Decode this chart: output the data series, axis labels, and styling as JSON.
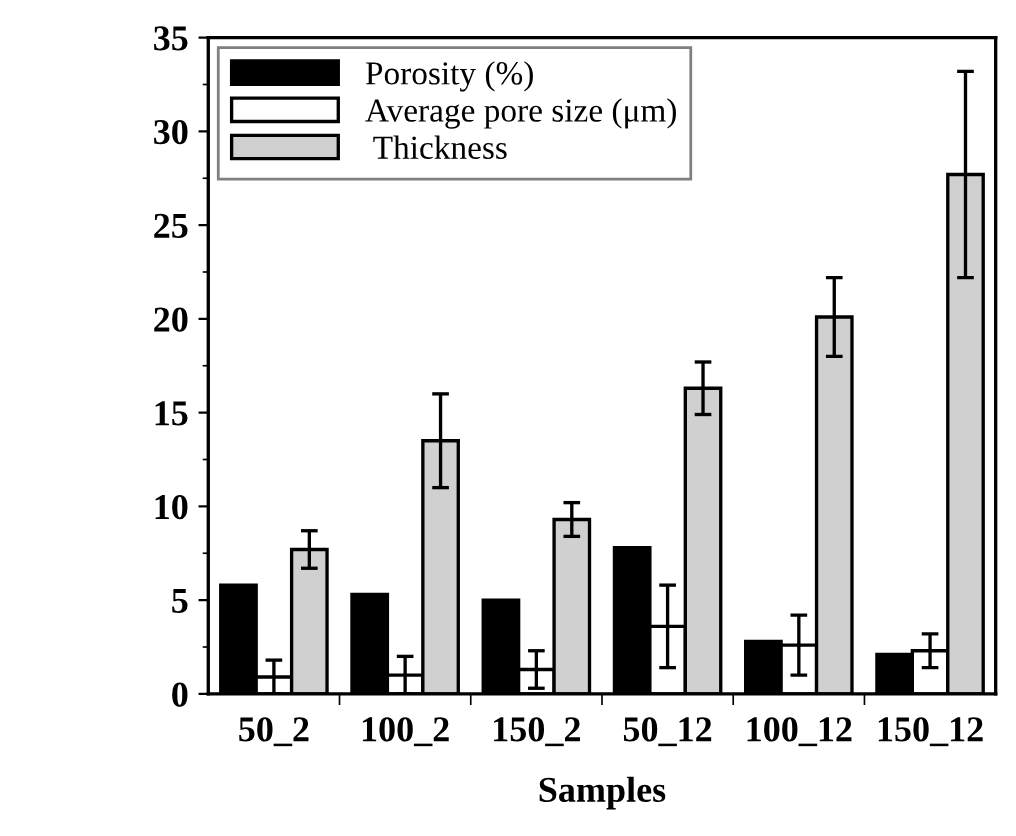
{
  "chart_data": {
    "type": "bar",
    "xlabel": "Samples",
    "categories": [
      "50_2",
      "100_2",
      "150_2",
      "50_12",
      "100_12",
      "150_12"
    ],
    "series": [
      {
        "name": "Porosity (%)",
        "color": "#000000",
        "values": [
          5.8,
          5.3,
          5.0,
          7.8,
          2.8,
          2.1
        ]
      },
      {
        "name": "Average pore size (μm)",
        "color": "#ffffff",
        "values": [
          0.9,
          1.0,
          1.3,
          3.6,
          2.6,
          2.3
        ],
        "errors": [
          0.9,
          1.0,
          1.0,
          2.2,
          1.6,
          0.9
        ]
      },
      {
        "name": " Thickness",
        "color": "#d0d0d0",
        "values": [
          7.7,
          13.5,
          9.3,
          16.3,
          20.1,
          27.7
        ],
        "errors": [
          1.0,
          2.5,
          0.9,
          1.4,
          2.1,
          5.5
        ]
      }
    ],
    "ylim": [
      0,
      35
    ],
    "yticks": [
      0,
      5,
      10,
      15,
      20,
      25,
      30,
      35
    ],
    "grid": false,
    "legend": "top left"
  }
}
